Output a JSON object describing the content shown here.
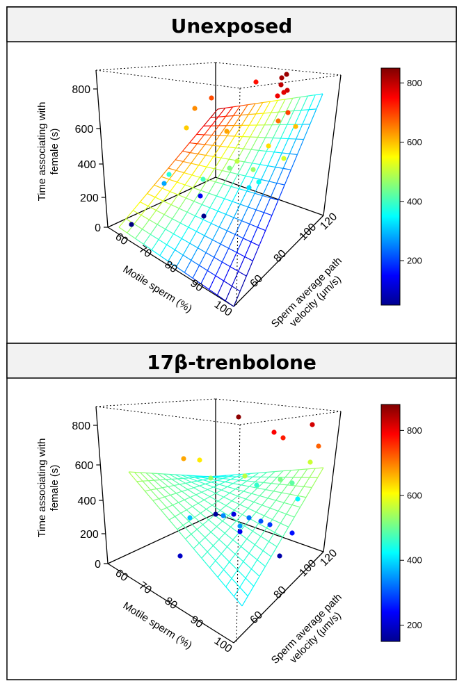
{
  "chart_data": [
    {
      "type": "scatter",
      "title": "Unexposed",
      "xlabel": "Motile sperm (%)",
      "ylabel": "Sperm average path velocity (μm/s)",
      "zlabel": "Time associating with female (s)",
      "xticks": [
        "60",
        "70",
        "80",
        "90",
        "100"
      ],
      "yticks": [
        "60",
        "80",
        "100",
        "120"
      ],
      "zticks": [
        "0",
        "200",
        "400",
        "600",
        "800"
      ],
      "colorbar_ticks": [
        "200",
        "400",
        "600",
        "800"
      ],
      "colorbar_range": [
        50,
        850
      ],
      "surface": "plane",
      "points": [
        {
          "z": 830
        },
        {
          "z": 820
        },
        {
          "z": 800
        },
        {
          "z": 790
        },
        {
          "z": 770
        },
        {
          "z": 760
        },
        {
          "z": 740
        },
        {
          "z": 700
        },
        {
          "z": 690
        },
        {
          "z": 660
        },
        {
          "z": 640
        },
        {
          "z": 620
        },
        {
          "z": 600
        },
        {
          "z": 590
        },
        {
          "z": 575
        },
        {
          "z": 520
        },
        {
          "z": 500
        },
        {
          "z": 470
        },
        {
          "z": 450
        },
        {
          "z": 400
        },
        {
          "z": 380
        },
        {
          "z": 360
        },
        {
          "z": 330
        },
        {
          "z": 280
        },
        {
          "z": 140
        },
        {
          "z": 60
        },
        {
          "z": 20
        }
      ]
    },
    {
      "type": "scatter",
      "title": "17β-trenbolone",
      "xlabel": "Motile sperm (%)",
      "ylabel": "Sperm average path velocity (μm/s)",
      "zlabel": "Time associating with female (s)",
      "xticks": [
        "60",
        "70",
        "80",
        "90",
        "100"
      ],
      "yticks": [
        "60",
        "80",
        "100",
        "120"
      ],
      "zticks": [
        "0",
        "200",
        "400",
        "600",
        "800"
      ],
      "colorbar_ticks": [
        "200",
        "400",
        "600",
        "800"
      ],
      "colorbar_range": [
        150,
        880
      ],
      "surface": "saddle",
      "points": [
        {
          "z": 870
        },
        {
          "z": 820
        },
        {
          "z": 790
        },
        {
          "z": 770
        },
        {
          "z": 720
        },
        {
          "z": 670
        },
        {
          "z": 620
        },
        {
          "z": 570
        },
        {
          "z": 560
        },
        {
          "z": 530
        },
        {
          "z": 510
        },
        {
          "z": 490
        },
        {
          "z": 460
        },
        {
          "z": 420
        },
        {
          "z": 380
        },
        {
          "z": 350
        },
        {
          "z": 340
        },
        {
          "z": 320
        },
        {
          "z": 300
        },
        {
          "z": 280
        },
        {
          "z": 250
        },
        {
          "z": 230
        },
        {
          "z": 220
        },
        {
          "z": 200
        },
        {
          "z": 180
        },
        {
          "z": 170
        }
      ]
    }
  ]
}
